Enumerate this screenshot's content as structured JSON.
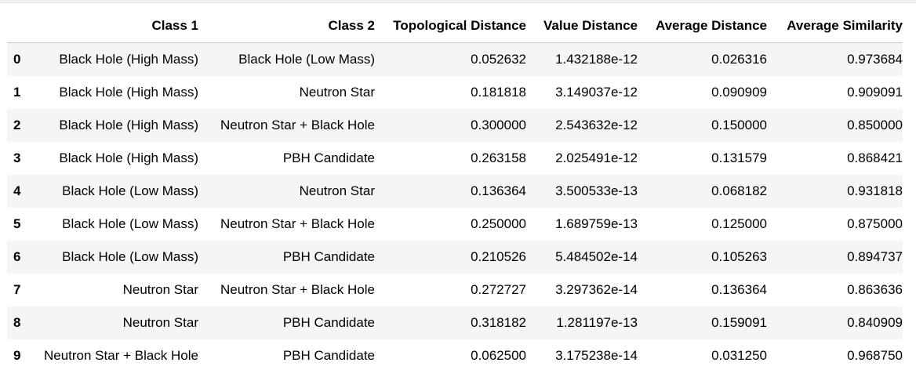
{
  "table": {
    "columns": [
      "",
      "Class 1",
      "Class 2",
      "Topological Distance",
      "Value Distance",
      "Average Distance",
      "Average Similarity"
    ],
    "rows": [
      [
        "0",
        "Black Hole (High Mass)",
        "Black Hole (Low Mass)",
        "0.052632",
        "1.432188e-12",
        "0.026316",
        "0.973684"
      ],
      [
        "1",
        "Black Hole (High Mass)",
        "Neutron Star",
        "0.181818",
        "3.149037e-12",
        "0.090909",
        "0.909091"
      ],
      [
        "2",
        "Black Hole (High Mass)",
        "Neutron Star + Black Hole",
        "0.300000",
        "2.543632e-12",
        "0.150000",
        "0.850000"
      ],
      [
        "3",
        "Black Hole (High Mass)",
        "PBH Candidate",
        "0.263158",
        "2.025491e-12",
        "0.131579",
        "0.868421"
      ],
      [
        "4",
        "Black Hole (Low Mass)",
        "Neutron Star",
        "0.136364",
        "3.500533e-13",
        "0.068182",
        "0.931818"
      ],
      [
        "5",
        "Black Hole (Low Mass)",
        "Neutron Star + Black Hole",
        "0.250000",
        "1.689759e-13",
        "0.125000",
        "0.875000"
      ],
      [
        "6",
        "Black Hole (Low Mass)",
        "PBH Candidate",
        "0.210526",
        "5.484502e-14",
        "0.105263",
        "0.894737"
      ],
      [
        "7",
        "Neutron Star",
        "Neutron Star + Black Hole",
        "0.272727",
        "3.297362e-14",
        "0.136364",
        "0.863636"
      ],
      [
        "8",
        "Neutron Star",
        "PBH Candidate",
        "0.318182",
        "1.281197e-13",
        "0.159091",
        "0.840909"
      ],
      [
        "9",
        "Neutron Star + Black Hole",
        "PBH Candidate",
        "0.062500",
        "3.175238e-14",
        "0.031250",
        "0.968750"
      ]
    ]
  }
}
